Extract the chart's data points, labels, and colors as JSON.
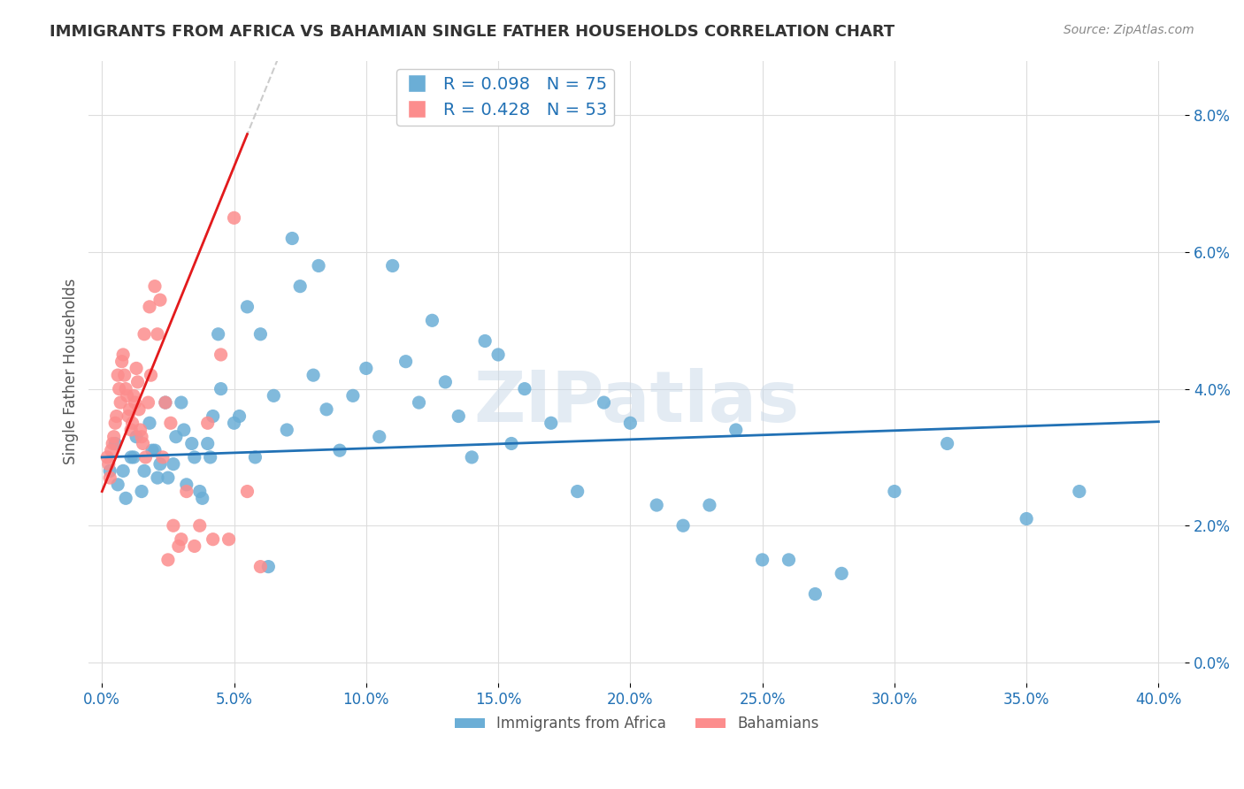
{
  "title": "IMMIGRANTS FROM AFRICA VS BAHAMIAN SINGLE FATHER HOUSEHOLDS CORRELATION CHART",
  "source": "Source: ZipAtlas.com",
  "xlabel_ticks": [
    "0.0%",
    "5.0%",
    "10.0%",
    "15.0%",
    "20.0%",
    "25.0%",
    "30.0%",
    "35.0%",
    "40.0%"
  ],
  "xlabel_vals": [
    0.0,
    5.0,
    10.0,
    15.0,
    20.0,
    25.0,
    30.0,
    35.0,
    40.0
  ],
  "ylabel_ticks": [
    "0.0%",
    "2.0%",
    "4.0%",
    "6.0%",
    "8.0%"
  ],
  "ylabel_vals": [
    0.0,
    2.0,
    4.0,
    6.0,
    8.0
  ],
  "ylabel_label": "Single Father Households",
  "blue_color": "#6baed6",
  "pink_color": "#fc8d8d",
  "blue_line_color": "#2171b5",
  "pink_line_color": "#e31a1c",
  "r_blue": 0.098,
  "n_blue": 75,
  "r_pink": 0.428,
  "n_pink": 53,
  "legend_label_blue": "Immigrants from Africa",
  "legend_label_pink": "Bahamians",
  "blue_scatter_x": [
    0.5,
    0.8,
    1.2,
    1.5,
    1.8,
    2.0,
    2.2,
    2.5,
    2.8,
    3.0,
    3.2,
    3.5,
    3.8,
    4.0,
    4.2,
    4.5,
    5.0,
    5.5,
    6.0,
    6.5,
    7.0,
    7.5,
    8.0,
    8.5,
    9.0,
    9.5,
    10.0,
    10.5,
    11.0,
    11.5,
    12.0,
    12.5,
    13.0,
    13.5,
    14.0,
    14.5,
    15.0,
    15.5,
    16.0,
    17.0,
    18.0,
    19.0,
    20.0,
    21.0,
    22.0,
    23.0,
    24.0,
    25.0,
    26.0,
    27.0,
    28.0,
    30.0,
    32.0,
    35.0,
    37.0,
    0.3,
    0.6,
    0.9,
    1.1,
    1.3,
    1.6,
    1.9,
    2.1,
    2.4,
    2.7,
    3.1,
    3.4,
    3.7,
    4.1,
    4.4,
    5.2,
    5.8,
    6.3,
    7.2,
    8.2
  ],
  "blue_scatter_y": [
    3.2,
    2.8,
    3.0,
    2.5,
    3.5,
    3.1,
    2.9,
    2.7,
    3.3,
    3.8,
    2.6,
    3.0,
    2.4,
    3.2,
    3.6,
    4.0,
    3.5,
    5.2,
    4.8,
    3.9,
    3.4,
    5.5,
    4.2,
    3.7,
    3.1,
    3.9,
    4.3,
    3.3,
    5.8,
    4.4,
    3.8,
    5.0,
    4.1,
    3.6,
    3.0,
    4.7,
    4.5,
    3.2,
    4.0,
    3.5,
    2.5,
    3.8,
    3.5,
    2.3,
    2.0,
    2.3,
    3.4,
    1.5,
    1.5,
    1.0,
    1.3,
    2.5,
    3.2,
    2.1,
    2.5,
    2.8,
    2.6,
    2.4,
    3.0,
    3.3,
    2.8,
    3.1,
    2.7,
    3.8,
    2.9,
    3.4,
    3.2,
    2.5,
    3.0,
    4.8,
    3.6,
    3.0,
    1.4,
    6.2,
    5.8
  ],
  "pink_scatter_x": [
    0.2,
    0.3,
    0.4,
    0.5,
    0.6,
    0.7,
    0.8,
    0.9,
    1.0,
    1.1,
    1.2,
    1.3,
    1.4,
    1.5,
    1.6,
    1.8,
    2.0,
    2.2,
    2.4,
    2.6,
    3.0,
    3.5,
    4.0,
    4.5,
    5.0,
    0.25,
    0.35,
    0.45,
    0.55,
    0.65,
    0.75,
    0.85,
    0.95,
    1.05,
    1.15,
    1.25,
    1.35,
    1.45,
    1.55,
    1.65,
    1.75,
    1.85,
    2.1,
    2.3,
    2.5,
    2.7,
    2.9,
    3.2,
    3.7,
    4.2,
    4.8,
    5.5,
    6.0
  ],
  "pink_scatter_y": [
    3.0,
    2.7,
    3.2,
    3.5,
    4.2,
    3.8,
    4.5,
    4.0,
    3.6,
    3.4,
    3.9,
    4.3,
    3.7,
    3.3,
    4.8,
    5.2,
    5.5,
    5.3,
    3.8,
    3.5,
    1.8,
    1.7,
    3.5,
    4.5,
    6.5,
    2.9,
    3.1,
    3.3,
    3.6,
    4.0,
    4.4,
    4.2,
    3.9,
    3.7,
    3.5,
    3.8,
    4.1,
    3.4,
    3.2,
    3.0,
    3.8,
    4.2,
    4.8,
    3.0,
    1.5,
    2.0,
    1.7,
    2.5,
    2.0,
    1.8,
    1.8,
    2.5,
    1.4
  ],
  "watermark": "ZIPatlas",
  "background_color": "#ffffff",
  "grid_color": "#dddddd"
}
